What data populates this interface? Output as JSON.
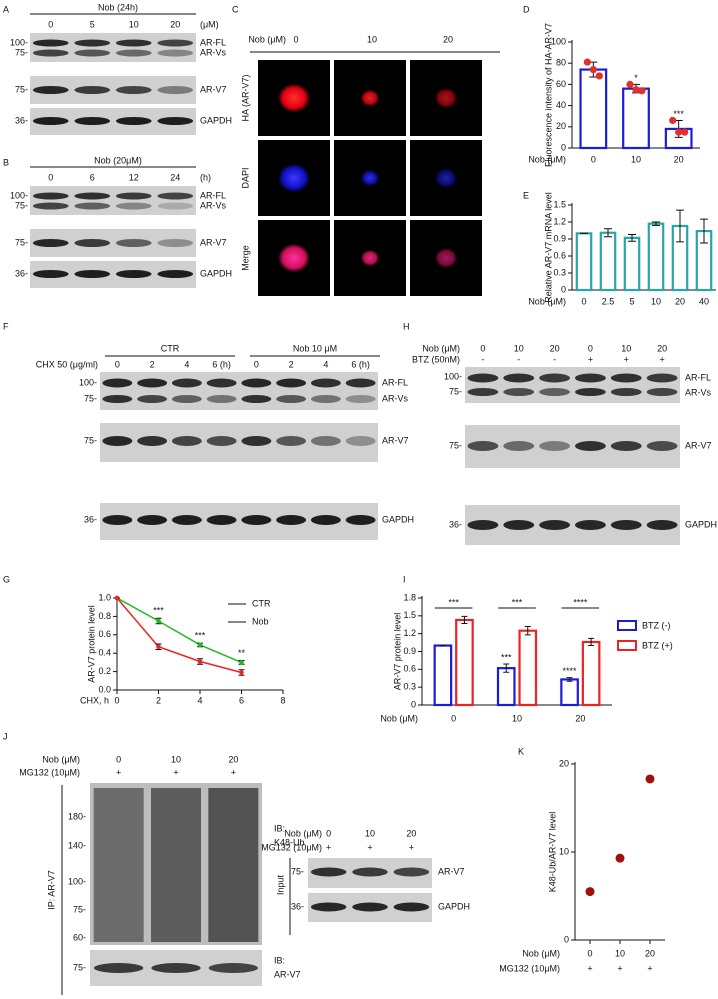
{
  "figure": {
    "panel_a": {
      "label": "A",
      "header": "Nob (24h)",
      "lanes": [
        "0",
        "5",
        "10",
        "20"
      ],
      "unit": "(μM)",
      "markers": [
        "100-",
        "75-",
        "75-",
        "36-"
      ],
      "bands": [
        "AR-FL",
        "AR-Vs",
        "AR-V7",
        "GAPDH"
      ]
    },
    "panel_b": {
      "label": "B",
      "header": "Nob (20μM)",
      "lanes": [
        "0",
        "6",
        "12",
        "24"
      ],
      "unit": "(h)",
      "markers": [
        "100-",
        "75-",
        "75-",
        "36-"
      ],
      "bands": [
        "AR-FL",
        "AR-Vs",
        "AR-V7",
        "GAPDH"
      ]
    },
    "panel_c": {
      "label": "C",
      "header": "Nob (μM)",
      "lanes": [
        "0",
        "10",
        "20"
      ],
      "rows": [
        "HA (AR-V7)",
        "DAPI",
        "Merge"
      ]
    },
    "panel_f": {
      "label": "F",
      "row_label": "CHX 50 (μg/ml)",
      "groups": [
        "CTR",
        "Nob 10 μM"
      ],
      "lanes": [
        "0",
        "2",
        "4",
        "6 (h)",
        "0",
        "2",
        "4",
        "6 (h)"
      ],
      "markers": [
        "100-",
        "75-",
        "75-",
        "36-"
      ],
      "bands": [
        "AR-FL",
        "AR-Vs",
        "AR-V7",
        "GAPDH"
      ]
    },
    "panel_h": {
      "label": "H",
      "rows": [
        {
          "name": "Nob (μM)",
          "lanes": [
            "0",
            "10",
            "20",
            "0",
            "10",
            "20"
          ]
        },
        {
          "name": "BTZ (50nM)",
          "lanes": [
            "-",
            "-",
            "-",
            "+",
            "+",
            "+"
          ]
        }
      ],
      "markers": [
        "100-",
        "75-",
        "75-",
        "36-"
      ],
      "bands": [
        "AR-FL",
        "AR-Vs",
        "AR-V7",
        "GAPDH"
      ]
    },
    "panel_j": {
      "label": "J",
      "rows": [
        {
          "name": "Nob (μM)",
          "lanes": [
            "0",
            "10",
            "20"
          ]
        },
        {
          "name": "MG132 (10μM)",
          "lanes": [
            "+",
            "+",
            "+"
          ]
        }
      ],
      "ip": "IP: AR-V7",
      "markers": [
        "180-",
        "140-",
        "100-",
        "75-",
        "60-",
        "75-"
      ],
      "blots": [
        [
          "IB:",
          "K48-Ub"
        ],
        [
          "IB:",
          "AR-V7"
        ]
      ],
      "input": {
        "name": "Input",
        "rows": [
          {
            "name": "Nob (μM)",
            "lanes": [
              "0",
              "10",
              "20"
            ]
          },
          {
            "name": "MG132 (10μM)",
            "lanes": [
              "+",
              "+",
              "+"
            ]
          }
        ],
        "markers": [
          "75-",
          "36-"
        ],
        "bands": [
          "AR-V7",
          "GAPDH"
        ]
      }
    }
  },
  "chart_data": [
    {
      "type": "bar",
      "label": "D",
      "ylabel": "Fluorescence intensity of HA-AR-V7",
      "xlabel": "Nob (μM)",
      "categories": [
        "0",
        "10",
        "20"
      ],
      "values": [
        74,
        56,
        18
      ],
      "errors": [
        7,
        4,
        8
      ],
      "points": [
        [
          81,
          74,
          68
        ],
        [
          60,
          55,
          54
        ],
        [
          26,
          15,
          15
        ]
      ],
      "significance": [
        null,
        "*",
        "***"
      ],
      "color": "#1c1cd8",
      "point_color": "#e0302a",
      "ylim": [
        0,
        100
      ],
      "yticks": [
        0,
        20,
        40,
        60,
        80,
        100
      ]
    },
    {
      "type": "bar",
      "label": "E",
      "ylabel": "Relative AR-V7 mRNA level",
      "xlabel": "Nob (μM)",
      "categories": [
        "0",
        "2.5",
        "5",
        "10",
        "20",
        "40"
      ],
      "values": [
        1,
        1.01,
        0.92,
        1.17,
        1.13,
        1.04
      ],
      "errors": [
        0,
        0.07,
        0.06,
        0.03,
        0.28,
        0.21
      ],
      "color": "#2aa5a5",
      "ylim": [
        0,
        1.5
      ],
      "yticks": [
        0,
        0.3,
        0.6,
        0.9,
        1.2,
        1.5
      ]
    },
    {
      "type": "line",
      "label": "G",
      "ylabel": "AR-V7 protein level",
      "xlabel": "CHX, h",
      "x": [
        0,
        2,
        4,
        6
      ],
      "series": [
        {
          "name": "CTR",
          "color": "#22bb22",
          "values": [
            1,
            0.75,
            0.49,
            0.3
          ],
          "errors": [
            0,
            0.03,
            0.02,
            0.02
          ]
        },
        {
          "name": "Nob",
          "color": "#ee2222",
          "values": [
            1,
            0.47,
            0.31,
            0.19
          ],
          "errors": [
            0,
            0.03,
            0.03,
            0.03
          ]
        }
      ],
      "significance": [
        null,
        "***",
        "***",
        "**"
      ],
      "xlim": [
        0,
        8
      ],
      "xticks": [
        0,
        2,
        4,
        6,
        8
      ],
      "ylim": [
        0,
        1
      ],
      "yticks": [
        {
          "value": 0,
          "label": "0.0"
        },
        0.2,
        0.4,
        0.6,
        0.8,
        {
          "value": 1,
          "label": "1.0"
        }
      ],
      "legend": "upper right"
    },
    {
      "type": "grouped_bar",
      "label": "I",
      "ylabel": "AR-V7 protein level",
      "xlabel": "Nob (μM)",
      "categories": [
        "0",
        "10",
        "20"
      ],
      "series": [
        {
          "name": "BTZ (-)",
          "color": "#1c1cd8",
          "values": [
            1,
            0.62,
            0.43
          ],
          "errors": [
            0,
            0.07,
            0.03
          ],
          "significance": [
            null,
            "***",
            "****"
          ]
        },
        {
          "name": "BTZ (+)",
          "color": "#ee2222",
          "values": [
            1.43,
            1.25,
            1.06
          ],
          "errors": [
            0.06,
            0.07,
            0.06
          ]
        }
      ],
      "pair_significance": [
        "***",
        "***",
        "****"
      ],
      "ylim": [
        0,
        1.8
      ],
      "yticks": [
        0,
        0.3,
        0.6,
        0.9,
        1.2,
        1.5,
        1.8
      ],
      "legend": "upper right"
    },
    {
      "type": "scatter",
      "label": "K",
      "ylabel": "K48-Ub/AR-V7 level",
      "xlabel": "Nob (μM)",
      "categories": [
        "0",
        "10",
        "20"
      ],
      "xlabel2": "MG132 (10μM)",
      "categories2": [
        "+",
        "+",
        "+"
      ],
      "values": [
        5.5,
        9.3,
        18.3
      ],
      "color": "#a01010",
      "ylim": [
        0,
        20
      ],
      "yticks": [
        0,
        10,
        20
      ]
    }
  ]
}
